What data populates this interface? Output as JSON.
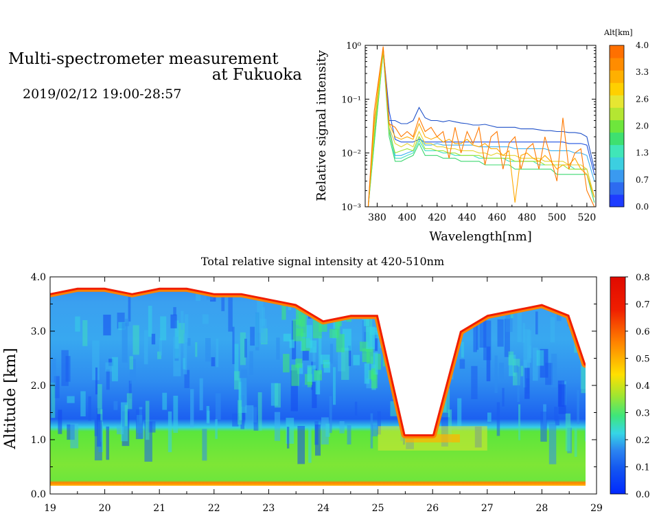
{
  "header": {
    "title_line1": "Multi-spectrometer measurement",
    "title_line2": "at Fukuoka",
    "datetime": "2019/02/12 19:00-28:57"
  },
  "chart_data": [
    {
      "type": "line",
      "title": "",
      "xlabel": "Wavelength[nm]",
      "ylabel": "Relative signal intensity",
      "xlim": [
        372,
        526
      ],
      "ylim": [
        0.001,
        1
      ],
      "yscale": "log",
      "xticks": [
        "380",
        "400",
        "420",
        "440",
        "460",
        "480",
        "500",
        "520"
      ],
      "yticks": [
        "10⁻³",
        "10⁻²",
        "10⁻¹",
        "10⁰"
      ],
      "grid": false,
      "legend_title": "Alt[km]",
      "legend_ticks": [
        "4.0",
        "3.3",
        "2.6",
        "2.0",
        "1.3",
        "0.7",
        "0.0"
      ],
      "colorbar_colors": [
        "#1e3cff",
        "#2d6bf0",
        "#3a9af0",
        "#3ccfe0",
        "#40e6b8",
        "#3ee070",
        "#6ee63c",
        "#b4e632",
        "#e6e632",
        "#ffd000",
        "#ffb000",
        "#ff8c00",
        "#ff7000"
      ],
      "x": [
        374,
        378,
        384,
        388,
        392,
        396,
        400,
        404,
        408,
        412,
        416,
        420,
        424,
        428,
        432,
        436,
        440,
        444,
        448,
        452,
        456,
        460,
        464,
        468,
        472,
        476,
        480,
        484,
        488,
        492,
        496,
        500,
        504,
        508,
        512,
        516,
        520,
        525
      ],
      "series": [
        {
          "color": "#1e50e0",
          "values": [
            0.001,
            0.02,
            0.85,
            0.06,
            0.018,
            0.016,
            0.016,
            0.016,
            0.018,
            0.016,
            0.016,
            0.016,
            0.016,
            0.016,
            0.016,
            0.016,
            0.016,
            0.016,
            0.016,
            0.016,
            0.016,
            0.016,
            0.016,
            0.016,
            0.016,
            0.016,
            0.016,
            0.016,
            0.016,
            0.016,
            0.016,
            0.016,
            0.016,
            0.015,
            0.015,
            0.015,
            0.014,
            0.004
          ]
        },
        {
          "color": "#1e50c8",
          "values": [
            0.001,
            0.03,
            0.85,
            0.04,
            0.04,
            0.035,
            0.035,
            0.04,
            0.07,
            0.045,
            0.04,
            0.04,
            0.038,
            0.04,
            0.038,
            0.036,
            0.035,
            0.033,
            0.033,
            0.034,
            0.032,
            0.03,
            0.03,
            0.03,
            0.03,
            0.028,
            0.028,
            0.028,
            0.027,
            0.026,
            0.026,
            0.025,
            0.025,
            0.024,
            0.024,
            0.023,
            0.02,
            0.005
          ]
        },
        {
          "color": "#3ab0f0",
          "values": [
            0.001,
            0.02,
            0.8,
            0.03,
            0.009,
            0.009,
            0.01,
            0.011,
            0.02,
            0.014,
            0.014,
            0.015,
            0.014,
            0.014,
            0.014,
            0.014,
            0.014,
            0.014,
            0.013,
            0.013,
            0.013,
            0.013,
            0.013,
            0.013,
            0.012,
            0.012,
            0.012,
            0.012,
            0.012,
            0.012,
            0.011,
            0.011,
            0.011,
            0.011,
            0.01,
            0.01,
            0.009,
            0.003
          ]
        },
        {
          "color": "#40e0c0",
          "values": [
            0.001,
            0.015,
            0.75,
            0.025,
            0.008,
            0.008,
            0.009,
            0.01,
            0.017,
            0.011,
            0.011,
            0.011,
            0.01,
            0.01,
            0.009,
            0.009,
            0.009,
            0.009,
            0.008,
            0.008,
            0.008,
            0.008,
            0.008,
            0.007,
            0.007,
            0.007,
            0.007,
            0.007,
            0.006,
            0.006,
            0.006,
            0.006,
            0.006,
            0.006,
            0.005,
            0.005,
            0.005,
            0.0015
          ]
        },
        {
          "color": "#3ed870",
          "values": [
            0.001,
            0.015,
            0.75,
            0.02,
            0.007,
            0.007,
            0.008,
            0.009,
            0.015,
            0.009,
            0.009,
            0.009,
            0.008,
            0.008,
            0.008,
            0.007,
            0.007,
            0.007,
            0.007,
            0.006,
            0.006,
            0.006,
            0.006,
            0.006,
            0.005,
            0.005,
            0.005,
            0.005,
            0.005,
            0.005,
            0.005,
            0.004,
            0.004,
            0.004,
            0.004,
            0.004,
            0.004,
            0.0012
          ]
        },
        {
          "color": "#9ee632",
          "values": [
            0.001,
            0.02,
            0.8,
            0.025,
            0.01,
            0.011,
            0.012,
            0.011,
            0.02,
            0.012,
            0.012,
            0.011,
            0.011,
            0.01,
            0.01,
            0.009,
            0.009,
            0.009,
            0.009,
            0.008,
            0.008,
            0.008,
            0.008,
            0.008,
            0.007,
            0.007,
            0.007,
            0.007,
            0.007,
            0.006,
            0.006,
            0.006,
            0.006,
            0.005,
            0.005,
            0.005,
            0.005,
            0.0015
          ]
        },
        {
          "color": "#e6d232",
          "values": [
            0.001,
            0.03,
            0.85,
            0.03,
            0.015,
            0.013,
            0.015,
            0.013,
            0.025,
            0.015,
            0.015,
            0.013,
            0.013,
            0.012,
            0.012,
            0.011,
            0.011,
            0.011,
            0.01,
            0.01,
            0.009,
            0.01,
            0.009,
            0.009,
            0.009,
            0.008,
            0.008,
            0.008,
            0.008,
            0.007,
            0.007,
            0.007,
            0.007,
            0.006,
            0.006,
            0.006,
            0.005,
            0.0015
          ]
        },
        {
          "color": "#ffa800",
          "values": [
            0.001,
            0.04,
            0.9,
            0.035,
            0.02,
            0.018,
            0.02,
            0.018,
            0.035,
            0.02,
            0.018,
            0.02,
            0.016,
            0.018,
            0.015,
            0.015,
            0.018,
            0.014,
            0.013,
            0.015,
            0.012,
            0.012,
            0.009,
            0.011,
            0.0012,
            0.009,
            0.01,
            0.008,
            0.007,
            0.009,
            0.007,
            0.005,
            0.006,
            0.006,
            0.008,
            0.005,
            0.004,
            0.0015
          ]
        },
        {
          "color": "#ff7800",
          "values": [
            0.001,
            0.06,
            0.95,
            0.035,
            0.03,
            0.02,
            0.025,
            0.02,
            0.045,
            0.025,
            0.03,
            0.02,
            0.025,
            0.008,
            0.03,
            0.01,
            0.025,
            0.015,
            0.03,
            0.006,
            0.02,
            0.025,
            0.005,
            0.015,
            0.02,
            0.005,
            0.012,
            0.015,
            0.005,
            0.02,
            0.008,
            0.003,
            0.045,
            0.005,
            0.01,
            0.012,
            0.002,
            0.001
          ]
        }
      ]
    },
    {
      "type": "heatmap",
      "title": "Total relative signal intensity at 420-510nm",
      "xlabel": "",
      "ylabel": "Altitude [km]",
      "xlim": [
        19,
        29
      ],
      "ylim": [
        0,
        4
      ],
      "xticks": [
        "19",
        "20",
        "21",
        "22",
        "23",
        "24",
        "25",
        "26",
        "27",
        "28",
        "29"
      ],
      "yticks": [
        "0.0",
        "1.0",
        "2.0",
        "3.0",
        "4.0"
      ],
      "grid": false,
      "colorbar_ticks": [
        "0.0",
        "0.1",
        "0.2",
        "0.3",
        "0.4",
        "0.5",
        "0.6",
        "0.7",
        "0.8"
      ],
      "colorbar_range": [
        0,
        0.8
      ],
      "colorbar_colors": [
        "#0028ff",
        "#1458f0",
        "#2c84f0",
        "#38b0f0",
        "#36d6e6",
        "#3ee6b4",
        "#3ee67a",
        "#5ae63c",
        "#9ee632",
        "#dce632",
        "#ffe000",
        "#ffb400",
        "#ff8200",
        "#ff5000",
        "#f01e00",
        "#e00a00"
      ],
      "x_hours": [
        19.0,
        19.5,
        20.0,
        20.5,
        21.0,
        21.5,
        22.0,
        22.5,
        23.0,
        23.5,
        24.0,
        24.5,
        25.0,
        25.5,
        26.0,
        26.5,
        27.0,
        27.5,
        28.0,
        28.5,
        28.8
      ],
      "cloud_base_km": [
        3.7,
        3.8,
        3.8,
        3.7,
        3.8,
        3.8,
        3.7,
        3.7,
        3.6,
        3.5,
        3.2,
        3.3,
        3.3,
        1.1,
        1.1,
        3.0,
        3.3,
        3.4,
        3.5,
        3.3,
        2.4
      ],
      "boundary_layer_top_km": 1.05,
      "values_mean_profile": {
        "altitude_km": [
          0.1,
          0.5,
          1.0,
          1.5,
          2.0,
          2.5,
          3.0,
          3.5,
          4.0
        ],
        "intensity": [
          0.5,
          0.33,
          0.28,
          0.12,
          0.14,
          0.16,
          0.18,
          0.2,
          0.22
        ]
      }
    }
  ]
}
